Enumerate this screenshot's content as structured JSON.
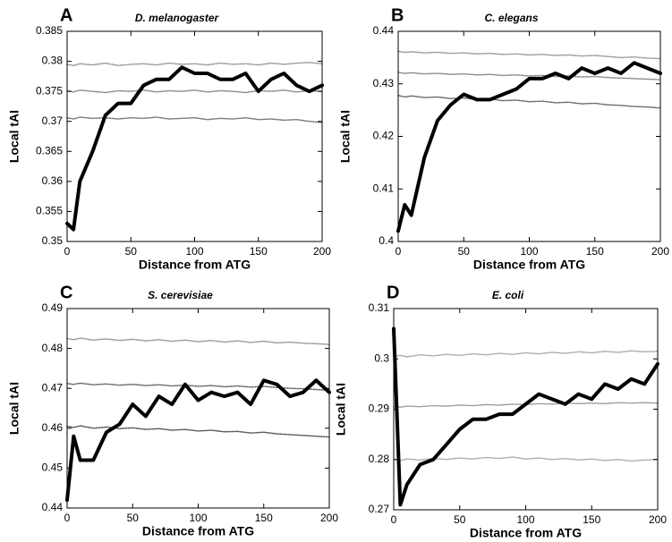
{
  "chart_data": [
    {
      "type": "line",
      "label": "A",
      "title": "D. melanogaster",
      "xlabel": "Distance from ATG",
      "ylabel": "Local tAI",
      "x": [
        0,
        5,
        10,
        20,
        30,
        40,
        50,
        60,
        70,
        80,
        90,
        100,
        110,
        120,
        130,
        140,
        150,
        160,
        170,
        180,
        190,
        200
      ],
      "xlim": [
        0,
        200
      ],
      "xticks": [
        0,
        50,
        100,
        150,
        200
      ],
      "ylim": [
        0.35,
        0.385
      ],
      "yticks": [
        0.35,
        0.355,
        0.36,
        0.365,
        0.37,
        0.375,
        0.38,
        0.385
      ],
      "series": [
        {
          "color": "#999999",
          "style": "dotted",
          "values": [
            0.3795,
            0.3793,
            0.3796,
            0.3794,
            0.3797,
            0.3793,
            0.3795,
            0.3796,
            0.3794,
            0.3797,
            0.3795,
            0.3796,
            0.3794,
            0.3797,
            0.3795,
            0.3796,
            0.3794,
            0.3797,
            0.3795,
            0.3797,
            0.3798,
            0.3796
          ]
        },
        {
          "color": "#888888",
          "style": "dotted",
          "values": [
            0.3751,
            0.3749,
            0.3752,
            0.375,
            0.3748,
            0.3751,
            0.375,
            0.3752,
            0.3749,
            0.3751,
            0.375,
            0.3752,
            0.3749,
            0.3751,
            0.375,
            0.3748,
            0.3751,
            0.375,
            0.3752,
            0.3749,
            0.3751,
            0.375
          ]
        },
        {
          "color": "#777777",
          "style": "dotted",
          "values": [
            0.3706,
            0.3704,
            0.3707,
            0.3705,
            0.3706,
            0.3704,
            0.3706,
            0.3705,
            0.3707,
            0.3704,
            0.3705,
            0.3706,
            0.3703,
            0.3705,
            0.3704,
            0.3706,
            0.3703,
            0.3704,
            0.3702,
            0.3703,
            0.37,
            0.3698
          ]
        },
        {
          "color": "#000000",
          "style": "thick",
          "values": [
            0.353,
            0.352,
            0.36,
            0.365,
            0.371,
            0.373,
            0.373,
            0.376,
            0.377,
            0.377,
            0.379,
            0.378,
            0.378,
            0.377,
            0.377,
            0.378,
            0.375,
            0.377,
            0.378,
            0.376,
            0.375,
            0.376
          ]
        }
      ]
    },
    {
      "type": "line",
      "label": "B",
      "title": "C. elegans",
      "xlabel": "Distance from ATG",
      "ylabel": "Local tAI",
      "x": [
        0,
        5,
        10,
        20,
        30,
        40,
        50,
        60,
        70,
        80,
        90,
        100,
        110,
        120,
        130,
        140,
        150,
        160,
        170,
        180,
        190,
        200
      ],
      "xlim": [
        0,
        200
      ],
      "xticks": [
        0,
        50,
        100,
        150,
        200
      ],
      "ylim": [
        0.4,
        0.44
      ],
      "yticks": [
        0.4,
        0.41,
        0.42,
        0.43,
        0.44
      ],
      "series": [
        {
          "color": "#999999",
          "style": "dotted",
          "values": [
            0.4362,
            0.436,
            0.4361,
            0.4359,
            0.436,
            0.4358,
            0.4359,
            0.4357,
            0.4358,
            0.4356,
            0.4357,
            0.4355,
            0.4356,
            0.4354,
            0.4355,
            0.4353,
            0.4354,
            0.4352,
            0.435,
            0.4351,
            0.4349,
            0.4348
          ]
        },
        {
          "color": "#888888",
          "style": "dotted",
          "values": [
            0.4322,
            0.432,
            0.4321,
            0.4319,
            0.432,
            0.4318,
            0.4319,
            0.4317,
            0.4318,
            0.4316,
            0.4317,
            0.4315,
            0.4316,
            0.4314,
            0.4315,
            0.4313,
            0.4314,
            0.4312,
            0.4311,
            0.431,
            0.4309,
            0.4308
          ]
        },
        {
          "color": "#666666",
          "style": "dotted",
          "values": [
            0.4278,
            0.4275,
            0.4277,
            0.4274,
            0.4275,
            0.4272,
            0.4273,
            0.427,
            0.4271,
            0.4268,
            0.4269,
            0.4266,
            0.4267,
            0.4264,
            0.4265,
            0.4262,
            0.4263,
            0.426,
            0.4259,
            0.4257,
            0.4256,
            0.4254
          ]
        },
        {
          "color": "#000000",
          "style": "thick",
          "values": [
            0.402,
            0.407,
            0.405,
            0.416,
            0.423,
            0.426,
            0.428,
            0.427,
            0.427,
            0.428,
            0.429,
            0.431,
            0.431,
            0.432,
            0.431,
            0.433,
            0.432,
            0.433,
            0.432,
            0.434,
            0.433,
            0.432
          ]
        }
      ]
    },
    {
      "type": "line",
      "label": "C",
      "title": "S. cerevisiae",
      "xlabel": "Distance from ATG",
      "ylabel": "Local tAI",
      "x": [
        0,
        5,
        10,
        20,
        30,
        40,
        50,
        60,
        70,
        80,
        90,
        100,
        110,
        120,
        130,
        140,
        150,
        160,
        170,
        180,
        190,
        200
      ],
      "xlim": [
        0,
        200
      ],
      "xticks": [
        0,
        50,
        100,
        150,
        200
      ],
      "ylim": [
        0.44,
        0.49
      ],
      "yticks": [
        0.44,
        0.45,
        0.46,
        0.47,
        0.48,
        0.49
      ],
      "series": [
        {
          "color": "#999999",
          "style": "dotted",
          "values": [
            0.4825,
            0.4822,
            0.4826,
            0.4821,
            0.4824,
            0.482,
            0.4823,
            0.4819,
            0.4822,
            0.4818,
            0.4821,
            0.4817,
            0.482,
            0.4816,
            0.4819,
            0.4815,
            0.4818,
            0.4814,
            0.4816,
            0.4813,
            0.4812,
            0.481
          ]
        },
        {
          "color": "#666666",
          "style": "dotted",
          "values": [
            0.4712,
            0.471,
            0.4713,
            0.4709,
            0.4711,
            0.4708,
            0.471,
            0.4707,
            0.4709,
            0.4706,
            0.4708,
            0.4705,
            0.4707,
            0.4704,
            0.4706,
            0.4703,
            0.4705,
            0.4702,
            0.47,
            0.4699,
            0.4697,
            0.4695
          ]
        },
        {
          "color": "#555555",
          "style": "dotted",
          "values": [
            0.4605,
            0.4602,
            0.4606,
            0.46,
            0.4603,
            0.4599,
            0.4601,
            0.4597,
            0.4599,
            0.4595,
            0.4597,
            0.4593,
            0.4595,
            0.4591,
            0.4592,
            0.4588,
            0.459,
            0.4586,
            0.4584,
            0.4582,
            0.458,
            0.4578
          ]
        },
        {
          "color": "#000000",
          "style": "thick",
          "values": [
            0.442,
            0.458,
            0.452,
            0.452,
            0.459,
            0.461,
            0.466,
            0.463,
            0.468,
            0.466,
            0.471,
            0.467,
            0.469,
            0.468,
            0.469,
            0.466,
            0.472,
            0.471,
            0.468,
            0.469,
            0.472,
            0.469
          ]
        }
      ]
    },
    {
      "type": "line",
      "label": "D",
      "title": "E. coli",
      "xlabel": "Distance from ATG",
      "ylabel": "Local tAI",
      "x": [
        0,
        5,
        10,
        20,
        30,
        40,
        50,
        60,
        70,
        80,
        90,
        100,
        110,
        120,
        130,
        140,
        150,
        160,
        170,
        180,
        190,
        200
      ],
      "xlim": [
        0,
        200
      ],
      "xticks": [
        0,
        50,
        100,
        150,
        200
      ],
      "ylim": [
        0.27,
        0.31
      ],
      "yticks": [
        0.27,
        0.28,
        0.29,
        0.3,
        0.31
      ],
      "series": [
        {
          "color": "#aaaaaa",
          "style": "dotted",
          "values": [
            0.3005,
            0.3007,
            0.3004,
            0.3008,
            0.3006,
            0.3009,
            0.3007,
            0.301,
            0.3008,
            0.3011,
            0.3009,
            0.3012,
            0.301,
            0.3013,
            0.3011,
            0.3014,
            0.3012,
            0.3015,
            0.3013,
            0.3016,
            0.3014,
            0.3015
          ]
        },
        {
          "color": "#999999",
          "style": "dotted",
          "values": [
            0.2905,
            0.2904,
            0.2906,
            0.2905,
            0.2907,
            0.2906,
            0.2908,
            0.2907,
            0.2909,
            0.2908,
            0.291,
            0.2909,
            0.2911,
            0.291,
            0.2912,
            0.2911,
            0.2912,
            0.2911,
            0.2913,
            0.2912,
            0.2913,
            0.2912
          ]
        },
        {
          "color": "#aaaaaa",
          "style": "dotted",
          "values": [
            0.28,
            0.2798,
            0.2801,
            0.2799,
            0.2802,
            0.28,
            0.2803,
            0.2801,
            0.2804,
            0.2802,
            0.2805,
            0.2801,
            0.2803,
            0.28,
            0.2802,
            0.2799,
            0.2801,
            0.2798,
            0.28,
            0.2797,
            0.2799,
            0.28
          ]
        },
        {
          "color": "#000000",
          "style": "thick",
          "values": [
            0.306,
            0.271,
            0.275,
            0.279,
            0.28,
            0.283,
            0.286,
            0.288,
            0.288,
            0.289,
            0.289,
            0.291,
            0.293,
            0.292,
            0.291,
            0.293,
            0.292,
            0.295,
            0.294,
            0.296,
            0.295,
            0.299
          ]
        }
      ]
    }
  ]
}
